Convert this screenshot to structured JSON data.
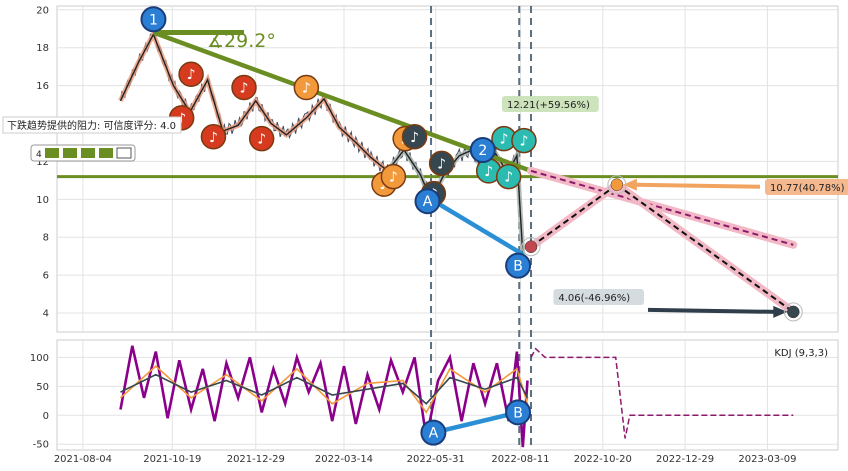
{
  "chart_data": [
    {
      "type": "line",
      "panel": "price",
      "ylim": [
        3,
        20.2
      ],
      "yticks": [
        4,
        6,
        8,
        10,
        12,
        16,
        18,
        20
      ],
      "xlabels": [
        "2021-08-04",
        "2021-10-19",
        "2021-12-29",
        "2022-03-14",
        "2022-05-31",
        "2022-08-11",
        "2022-10-20",
        "2022-12-29",
        "2023-03-09"
      ],
      "angle_label": "∡29.2°",
      "resistance_text": "下跌趋势提供的阻力: 可信度评分: 4.0",
      "rating_prefix": "4",
      "horizontal_level": 11.2,
      "price_series": [
        {
          "date": "2021-09-05",
          "value": 15.2
        },
        {
          "date": "2021-09-20",
          "value": 17.2
        },
        {
          "date": "2021-10-03",
          "value": 18.7
        },
        {
          "date": "2021-10-20",
          "value": 16.0
        },
        {
          "date": "2021-11-03",
          "value": 14.6
        },
        {
          "date": "2021-11-18",
          "value": 16.3
        },
        {
          "date": "2021-12-01",
          "value": 13.6
        },
        {
          "date": "2021-12-14",
          "value": 13.9
        },
        {
          "date": "2021-12-29",
          "value": 15.2
        },
        {
          "date": "2022-01-11",
          "value": 14.0
        },
        {
          "date": "2022-01-24",
          "value": 13.4
        },
        {
          "date": "2022-02-10",
          "value": 14.3
        },
        {
          "date": "2022-02-25",
          "value": 15.3
        },
        {
          "date": "2022-03-10",
          "value": 13.8
        },
        {
          "date": "2022-03-24",
          "value": 13.0
        },
        {
          "date": "2022-04-06",
          "value": 12.2
        },
        {
          "date": "2022-04-20",
          "value": 11.5
        },
        {
          "date": "2022-05-04",
          "value": 12.6
        },
        {
          "date": "2022-05-18",
          "value": 11.3
        },
        {
          "date": "2022-05-27",
          "value": 10.0
        },
        {
          "date": "2022-06-08",
          "value": 11.4
        },
        {
          "date": "2022-06-20",
          "value": 12.3
        },
        {
          "date": "2022-07-01",
          "value": 12.6
        },
        {
          "date": "2022-07-11",
          "value": 11.4
        },
        {
          "date": "2022-07-21",
          "value": 12.4
        },
        {
          "date": "2022-07-31",
          "value": 11.4
        },
        {
          "date": "2022-08-08",
          "value": 12.3
        },
        {
          "date": "2022-08-13",
          "value": 7.1
        }
      ],
      "trend_lines": [
        {
          "from": [
            "2021-10-03",
            18.8
          ],
          "to": [
            "2022-08-20",
            11.5
          ],
          "role": "resistance"
        },
        {
          "from": [
            "2022-05-27",
            10.0
          ],
          "to": [
            "2022-08-13",
            7.1
          ],
          "role": "support"
        }
      ],
      "projections": [
        {
          "from": [
            "2022-08-20",
            11.5
          ],
          "to": [
            "2023-03-31",
            7.6
          ],
          "style": "dashed-purple"
        },
        {
          "from": [
            "2022-08-20",
            7.5
          ],
          "to": [
            "2022-11-01",
            10.77
          ],
          "style": "dashed-black"
        },
        {
          "from": [
            "2022-11-01",
            10.77
          ],
          "to": [
            "2023-03-31",
            4.06
          ],
          "style": "dashed-black"
        }
      ],
      "annotations": [
        {
          "text": "12.21(+59.56%)",
          "date": "2022-08-15",
          "value": 12.21,
          "color": "#c8e0b4"
        },
        {
          "text": "10.77(40.78%)",
          "date": "2022-11-01",
          "value": 10.77,
          "color": "#f4b183"
        },
        {
          "text": "4.06(-46.96%)",
          "date": "2023-03-31",
          "value": 4.06,
          "color": "#cfd8dc"
        }
      ],
      "markers": [
        {
          "label": "1",
          "date": "2021-10-03",
          "value": 19.5,
          "color": "#2a7fd4"
        },
        {
          "label": "2",
          "date": "2022-07-10",
          "value": 12.6,
          "color": "#2a7fd4"
        },
        {
          "label": "A",
          "date": "2022-05-24",
          "value": 9.9,
          "color": "#2a7fd4"
        },
        {
          "label": "B",
          "date": "2022-08-09",
          "value": 6.5,
          "color": "#2a7fd4"
        }
      ],
      "note_markers": [
        {
          "date": "2021-11-04",
          "value": 16.6,
          "color": "#d63b1f"
        },
        {
          "date": "2021-10-27",
          "value": 14.3,
          "color": "#d63b1f"
        },
        {
          "date": "2021-11-23",
          "value": 13.3,
          "color": "#d63b1f"
        },
        {
          "date": "2021-12-19",
          "value": 15.9,
          "color": "#d63b1f"
        },
        {
          "date": "2022-01-03",
          "value": 13.2,
          "color": "#d63b1f"
        },
        {
          "date": "2022-02-10",
          "value": 15.9,
          "color": "#f29a3b"
        },
        {
          "date": "2022-04-17",
          "value": 10.8,
          "color": "#f29a3b"
        },
        {
          "date": "2022-04-25",
          "value": 11.2,
          "color": "#f29a3b"
        },
        {
          "date": "2022-05-05",
          "value": 13.2,
          "color": "#f29a3b"
        },
        {
          "date": "2022-05-13",
          "value": 13.3,
          "color": "#37474f"
        },
        {
          "date": "2022-05-29",
          "value": 10.3,
          "color": "#37474f"
        },
        {
          "date": "2022-06-05",
          "value": 11.9,
          "color": "#37474f"
        },
        {
          "date": "2022-07-15",
          "value": 11.5,
          "color": "#2bbbb0"
        },
        {
          "date": "2022-07-28",
          "value": 13.2,
          "color": "#2bbbb0"
        },
        {
          "date": "2022-08-01",
          "value": 11.2,
          "color": "#2bbbb0"
        },
        {
          "date": "2022-08-14",
          "value": 13.1,
          "color": "#2bbbb0"
        }
      ],
      "target_points": [
        {
          "date": "2022-08-20",
          "value": 7.5,
          "color": "#c04850"
        },
        {
          "date": "2022-11-01",
          "value": 10.77,
          "color": "#f29a3b"
        },
        {
          "date": "2023-03-31",
          "value": 4.06,
          "color": "#37474f"
        }
      ],
      "vertical_lines": [
        "2022-05-27",
        "2022-08-10",
        "2022-08-20"
      ]
    },
    {
      "type": "line",
      "panel": "kdj",
      "legend": "KDJ (9,3,3)",
      "ylim": [
        -60,
        130
      ],
      "yticks": [
        -50,
        0,
        50,
        100
      ],
      "series": [
        {
          "role": "J",
          "color": "#8b008b",
          "values": [
            {
              "date": "2021-09-05",
              "value": 10
            },
            {
              "date": "2021-09-15",
              "value": 120
            },
            {
              "date": "2021-09-25",
              "value": 30
            },
            {
              "date": "2021-10-05",
              "value": 110
            },
            {
              "date": "2021-10-15",
              "value": -5
            },
            {
              "date": "2021-10-25",
              "value": 95
            },
            {
              "date": "2021-11-04",
              "value": 10
            },
            {
              "date": "2021-11-14",
              "value": 80
            },
            {
              "date": "2021-11-24",
              "value": -10
            },
            {
              "date": "2021-12-04",
              "value": 90
            },
            {
              "date": "2021-12-14",
              "value": 30
            },
            {
              "date": "2021-12-24",
              "value": 100
            },
            {
              "date": "2022-01-03",
              "value": 5
            },
            {
              "date": "2022-01-13",
              "value": 80
            },
            {
              "date": "2022-01-23",
              "value": 20
            },
            {
              "date": "2022-02-02",
              "value": 100
            },
            {
              "date": "2022-02-12",
              "value": 40
            },
            {
              "date": "2022-02-22",
              "value": 90
            },
            {
              "date": "2022-03-04",
              "value": -10
            },
            {
              "date": "2022-03-14",
              "value": 85
            },
            {
              "date": "2022-03-24",
              "value": -15
            },
            {
              "date": "2022-04-03",
              "value": 70
            },
            {
              "date": "2022-04-13",
              "value": 10
            },
            {
              "date": "2022-04-23",
              "value": 95
            },
            {
              "date": "2022-05-03",
              "value": 40
            },
            {
              "date": "2022-05-13",
              "value": 100
            },
            {
              "date": "2022-05-23",
              "value": -40
            },
            {
              "date": "2022-06-02",
              "value": 60
            },
            {
              "date": "2022-06-12",
              "value": 100
            },
            {
              "date": "2022-06-22",
              "value": -10
            },
            {
              "date": "2022-07-02",
              "value": 90
            },
            {
              "date": "2022-07-12",
              "value": 20
            },
            {
              "date": "2022-07-22",
              "value": 90
            },
            {
              "date": "2022-08-01",
              "value": -10
            },
            {
              "date": "2022-08-08",
              "value": 110
            },
            {
              "date": "2022-08-13",
              "value": -55
            },
            {
              "date": "2022-08-17",
              "value": 60
            }
          ]
        },
        {
          "role": "K",
          "color": "#f29a3b",
          "values": [
            {
              "date": "2021-09-05",
              "value": 30
            },
            {
              "date": "2021-10-05",
              "value": 85
            },
            {
              "date": "2021-11-04",
              "value": 30
            },
            {
              "date": "2021-12-04",
              "value": 70
            },
            {
              "date": "2022-01-03",
              "value": 25
            },
            {
              "date": "2022-02-02",
              "value": 80
            },
            {
              "date": "2022-03-04",
              "value": 20
            },
            {
              "date": "2022-04-03",
              "value": 55
            },
            {
              "date": "2022-05-03",
              "value": 60
            },
            {
              "date": "2022-05-23",
              "value": 5
            },
            {
              "date": "2022-06-12",
              "value": 80
            },
            {
              "date": "2022-07-12",
              "value": 40
            },
            {
              "date": "2022-08-08",
              "value": 80
            },
            {
              "date": "2022-08-17",
              "value": 20
            }
          ]
        },
        {
          "role": "D",
          "color": "#37474f",
          "values": [
            {
              "date": "2021-09-05",
              "value": 40
            },
            {
              "date": "2021-10-05",
              "value": 70
            },
            {
              "date": "2021-11-04",
              "value": 40
            },
            {
              "date": "2021-12-04",
              "value": 60
            },
            {
              "date": "2022-01-03",
              "value": 35
            },
            {
              "date": "2022-02-02",
              "value": 65
            },
            {
              "date": "2022-03-04",
              "value": 35
            },
            {
              "date": "2022-04-03",
              "value": 45
            },
            {
              "date": "2022-05-03",
              "value": 55
            },
            {
              "date": "2022-05-23",
              "value": 20
            },
            {
              "date": "2022-06-12",
              "value": 65
            },
            {
              "date": "2022-07-12",
              "value": 45
            },
            {
              "date": "2022-08-08",
              "value": 65
            },
            {
              "date": "2022-08-17",
              "value": 30
            }
          ]
        }
      ],
      "projection": [
        {
          "date": "2022-08-20",
          "value": 100
        },
        {
          "date": "2022-08-24",
          "value": 115
        },
        {
          "date": "2022-09-01",
          "value": 100
        },
        {
          "date": "2022-10-31",
          "value": 100
        },
        {
          "date": "2022-11-08",
          "value": -40
        },
        {
          "date": "2022-11-12",
          "value": 0
        },
        {
          "date": "2023-03-31",
          "value": 0
        }
      ],
      "markers": [
        {
          "label": "A",
          "date": "2022-05-29",
          "value": -30,
          "color": "#2a7fd4"
        },
        {
          "label": "B",
          "date": "2022-08-09",
          "value": 5,
          "color": "#2a7fd4"
        }
      ]
    }
  ]
}
